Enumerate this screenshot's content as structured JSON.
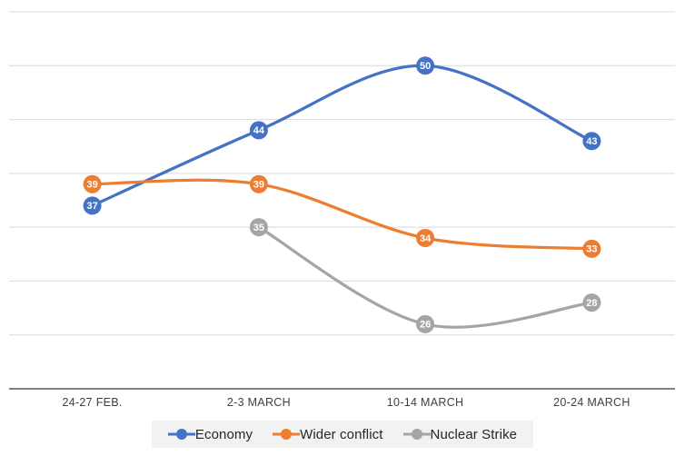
{
  "chart_data": {
    "type": "line",
    "smooth": true,
    "data_labels": true,
    "title": "",
    "xlabel": "",
    "ylabel": "",
    "categories": [
      "24-27 FEB.",
      "2-3 MARCH",
      "10-14 MARCH",
      "20-24 MARCH"
    ],
    "series": [
      {
        "name": "Economy",
        "color": "#4472C4",
        "values": [
          37,
          44,
          50,
          43
        ]
      },
      {
        "name": "Wider conflict",
        "color": "#ED7D31",
        "values": [
          39,
          39,
          34,
          33
        ]
      },
      {
        "name": "Nuclear Strike",
        "color": "#A5A5A5",
        "values": [
          null,
          35,
          26,
          28
        ]
      }
    ],
    "ylim": [
      20,
      55
    ],
    "gridline_step": 5,
    "grid": true,
    "legend_position": "bottom"
  },
  "theme": {
    "background": "#FFFFFF",
    "gridline_color": "#D9D9D9",
    "axis_line_color": "#808080",
    "tick_label_color": "#404040",
    "legend_background": "#F2F2F2",
    "legend_text_color": "#262626",
    "data_label_color": "#FFFFFF"
  }
}
